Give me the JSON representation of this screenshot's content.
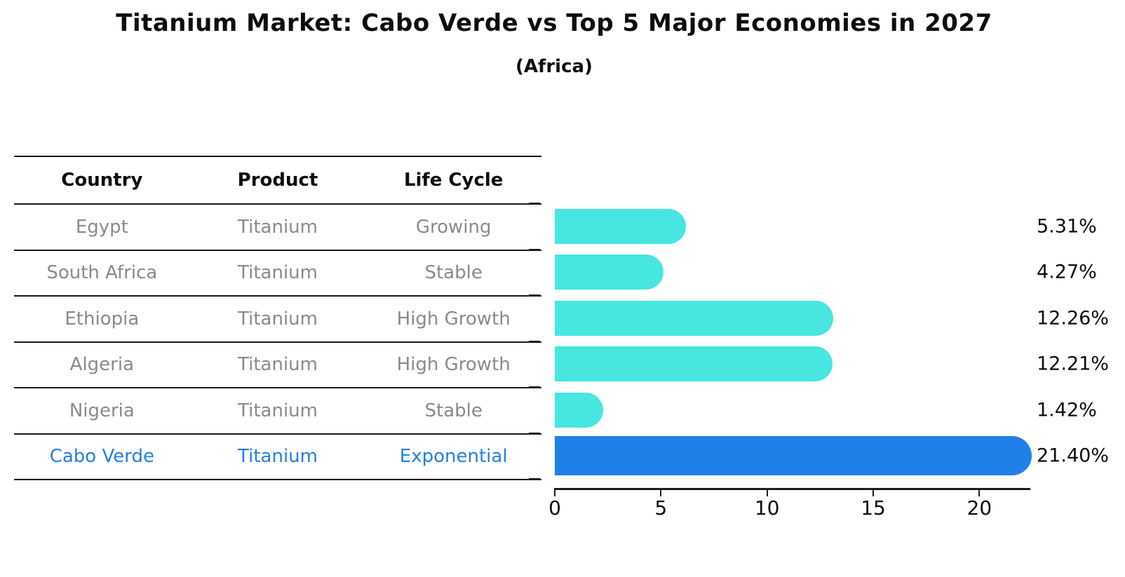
{
  "title": "Titanium Market: Cabo Verde vs Top 5 Major Economies in 2027",
  "subtitle": "(Africa)",
  "table": {
    "headers": [
      "Country",
      "Product",
      "Life Cycle"
    ],
    "rows": [
      {
        "country": "Egypt",
        "product": "Titanium",
        "life_cycle": "Growing",
        "highlight": false
      },
      {
        "country": "South Africa",
        "product": "Titanium",
        "life_cycle": "Stable",
        "highlight": false
      },
      {
        "country": "Ethiopia",
        "product": "Titanium",
        "life_cycle": "High Growth",
        "highlight": false
      },
      {
        "country": "Algeria",
        "product": "Titanium",
        "life_cycle": "High Growth",
        "highlight": false
      },
      {
        "country": "Nigeria",
        "product": "Titanium",
        "life_cycle": "Stable",
        "highlight": false
      },
      {
        "country": "Cabo Verde",
        "product": "Titanium",
        "life_cycle": "Exponential",
        "highlight": true
      }
    ]
  },
  "chart_data": {
    "type": "bar",
    "orientation": "horizontal",
    "title": "Titanium Market: Cabo Verde vs Top 5 Major Economies in 2027",
    "subtitle": "(Africa)",
    "categories": [
      "Egypt",
      "South Africa",
      "Ethiopia",
      "Algeria",
      "Nigeria",
      "Cabo Verde"
    ],
    "values": [
      5.31,
      4.27,
      12.26,
      12.21,
      1.42,
      21.4
    ],
    "value_labels": [
      "5.31%",
      "4.27%",
      "12.26%",
      "12.21%",
      "1.42%",
      "21.40%"
    ],
    "highlight_index": 5,
    "x_ticks": [
      0,
      5,
      10,
      15,
      20
    ],
    "xlim": [
      0,
      22.4
    ],
    "xlabel": "",
    "ylabel": "",
    "grid": false,
    "legend": null,
    "bar_color": "#47e6e1",
    "highlight_bar_color": "#1e80e8",
    "highlight_text_color": "#2380e0",
    "table_text_color": "#8a8a8a",
    "axis_color": "#1a1a1a"
  }
}
